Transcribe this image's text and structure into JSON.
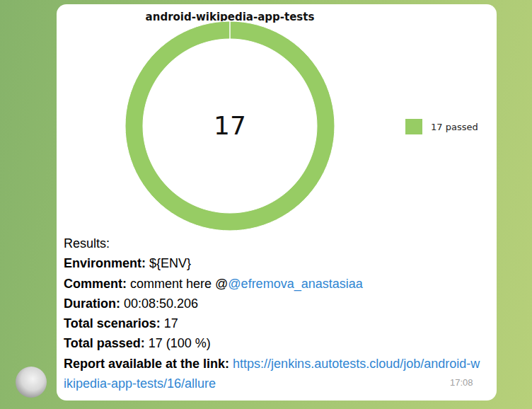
{
  "chart_data": {
    "type": "pie",
    "title": "android-wikipedia-app-tests",
    "categories": [
      "17 passed"
    ],
    "values": [
      17
    ],
    "colors": [
      "#97cc64"
    ],
    "center_label": "17",
    "legend": "right"
  },
  "message": {
    "header": "Results:",
    "fields": [
      {
        "label": "Environment:",
        "value": "${ENV}"
      },
      {
        "label": "Comment:",
        "value": "comment here @",
        "mention": "@efremova_anastasiaa"
      },
      {
        "label": "Duration:",
        "value": "00:08:50.206"
      },
      {
        "label": "Total scenarios:",
        "value": "17"
      },
      {
        "label": "Total passed:",
        "value": "17 (100 %)"
      },
      {
        "label": "Report available at the link:",
        "link": "https://jenkins.autotests.cloud/job/android-wikipedia-app-tests/16/allure"
      }
    ],
    "time": "17:08"
  }
}
